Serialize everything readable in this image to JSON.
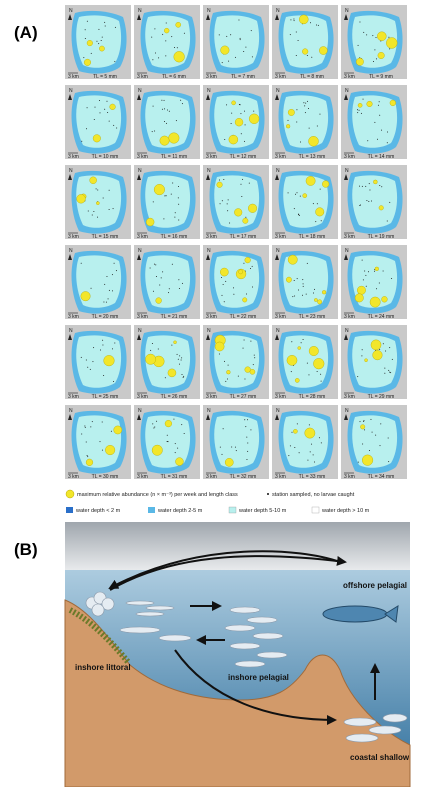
{
  "panels": {
    "a": "(A)",
    "b": "(B)"
  },
  "maps": {
    "north_label": "N",
    "scale_label": "3 km",
    "labels": [
      "TL = 5 mm",
      "TL = 6 mm",
      "TL = 7 mm",
      "TL = 8 mm",
      "TL = 9 mm",
      "TL = 10 mm",
      "TL = 11 mm",
      "TL = 12 mm",
      "TL = 13 mm",
      "TL = 14 mm",
      "TL = 15 mm",
      "TL = 16 mm",
      "TL = 17 mm",
      "TL = 18 mm",
      "TL = 19 mm",
      "TL = 20 mm",
      "TL = 21 mm",
      "TL = 22 mm",
      "TL = 23 mm",
      "TL = 24 mm",
      "TL = 25 mm",
      "TL = 26 mm",
      "TL = 27 mm",
      "TL = 28 mm",
      "TL = 29 mm",
      "TL = 30 mm",
      "TL = 31 mm",
      "TL = 32 mm",
      "TL = 33 mm",
      "TL = 34 mm"
    ]
  },
  "legend": {
    "abundance": "maximum relative abundance  (n × m⁻³) per week and length class",
    "station": "station sampled, no larvae caught",
    "depth": [
      "water depth < 2 m",
      "water depth 2-5 m",
      "water depth 5-10 m",
      "water depth > 10 m"
    ]
  },
  "diagram": {
    "offshore": "offshore pelagial",
    "littoral": "inshore littoral",
    "pelagial": "inshore pelagial",
    "shallow": "coastal shallow"
  }
}
